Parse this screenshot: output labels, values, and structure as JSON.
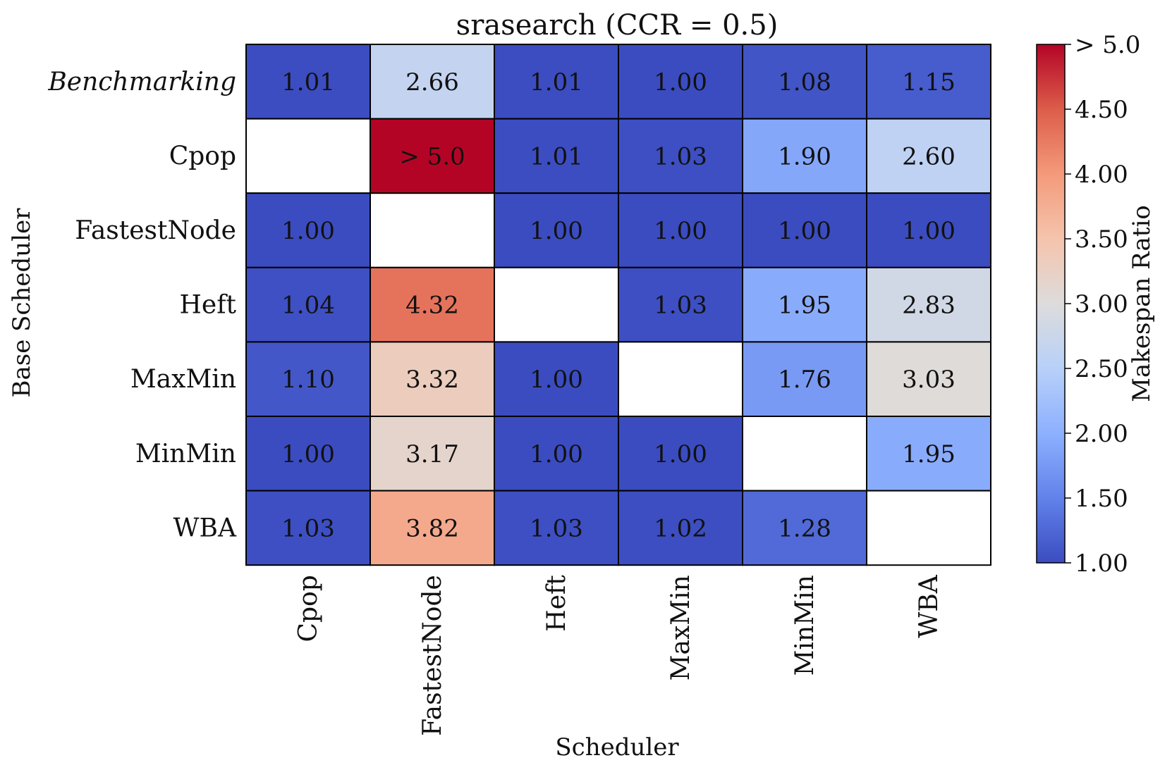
{
  "chart_data": {
    "type": "heatmap",
    "title": "srasearch (CCR = 0.5)",
    "xlabel": "Scheduler",
    "ylabel": "Base Scheduler",
    "x_categories": [
      "Cpop",
      "FastestNode",
      "Heft",
      "MaxMin",
      "MinMin",
      "WBA"
    ],
    "y_categories": [
      "Benchmarking",
      "Cpop",
      "FastestNode",
      "Heft",
      "MaxMin",
      "MinMin",
      "WBA"
    ],
    "cells": [
      [
        {
          "value": 1.01,
          "label": "1.01"
        },
        {
          "value": 2.66,
          "label": "2.66"
        },
        {
          "value": 1.01,
          "label": "1.01"
        },
        {
          "value": 1.0,
          "label": "1.00"
        },
        {
          "value": 1.08,
          "label": "1.08"
        },
        {
          "value": 1.15,
          "label": "1.15"
        }
      ],
      [
        null,
        {
          "value": 5.0,
          "label": "> 5.0"
        },
        {
          "value": 1.01,
          "label": "1.01"
        },
        {
          "value": 1.03,
          "label": "1.03"
        },
        {
          "value": 1.9,
          "label": "1.90"
        },
        {
          "value": 2.6,
          "label": "2.60"
        }
      ],
      [
        {
          "value": 1.0,
          "label": "1.00"
        },
        null,
        {
          "value": 1.0,
          "label": "1.00"
        },
        {
          "value": 1.0,
          "label": "1.00"
        },
        {
          "value": 1.0,
          "label": "1.00"
        },
        {
          "value": 1.0,
          "label": "1.00"
        }
      ],
      [
        {
          "value": 1.04,
          "label": "1.04"
        },
        {
          "value": 4.32,
          "label": "4.32"
        },
        null,
        {
          "value": 1.03,
          "label": "1.03"
        },
        {
          "value": 1.95,
          "label": "1.95"
        },
        {
          "value": 2.83,
          "label": "2.83"
        }
      ],
      [
        {
          "value": 1.1,
          "label": "1.10"
        },
        {
          "value": 3.32,
          "label": "3.32"
        },
        {
          "value": 1.0,
          "label": "1.00"
        },
        null,
        {
          "value": 1.76,
          "label": "1.76"
        },
        {
          "value": 3.03,
          "label": "3.03"
        }
      ],
      [
        {
          "value": 1.0,
          "label": "1.00"
        },
        {
          "value": 3.17,
          "label": "3.17"
        },
        {
          "value": 1.0,
          "label": "1.00"
        },
        {
          "value": 1.0,
          "label": "1.00"
        },
        null,
        {
          "value": 1.95,
          "label": "1.95"
        }
      ],
      [
        {
          "value": 1.03,
          "label": "1.03"
        },
        {
          "value": 3.82,
          "label": "3.82"
        },
        {
          "value": 1.03,
          "label": "1.03"
        },
        {
          "value": 1.02,
          "label": "1.02"
        },
        {
          "value": 1.28,
          "label": "1.28"
        },
        null
      ]
    ],
    "colorbar": {
      "label": "Makespan Ratio",
      "colormap": "coolwarm",
      "range": [
        1.0,
        5.0
      ],
      "ticks": [
        1.0,
        1.5,
        2.0,
        2.5,
        3.0,
        3.5,
        4.0,
        4.5,
        5.0
      ],
      "tick_labels": [
        "1.00",
        "1.50",
        "2.00",
        "2.50",
        "3.00",
        "3.50",
        "4.00",
        "4.50",
        "> 5.0"
      ]
    },
    "grid": false,
    "legend": "colorbar-right",
    "colors": {
      "cmap_stops": [
        "#3b4cc0",
        "#6282ea",
        "#8db0fe",
        "#b8d0f9",
        "#dddcdc",
        "#f5c4ac",
        "#f49a7b",
        "#dc5d4a",
        "#b40426"
      ],
      "cell_border": "#000000",
      "empty_cell": "#ffffff"
    }
  }
}
